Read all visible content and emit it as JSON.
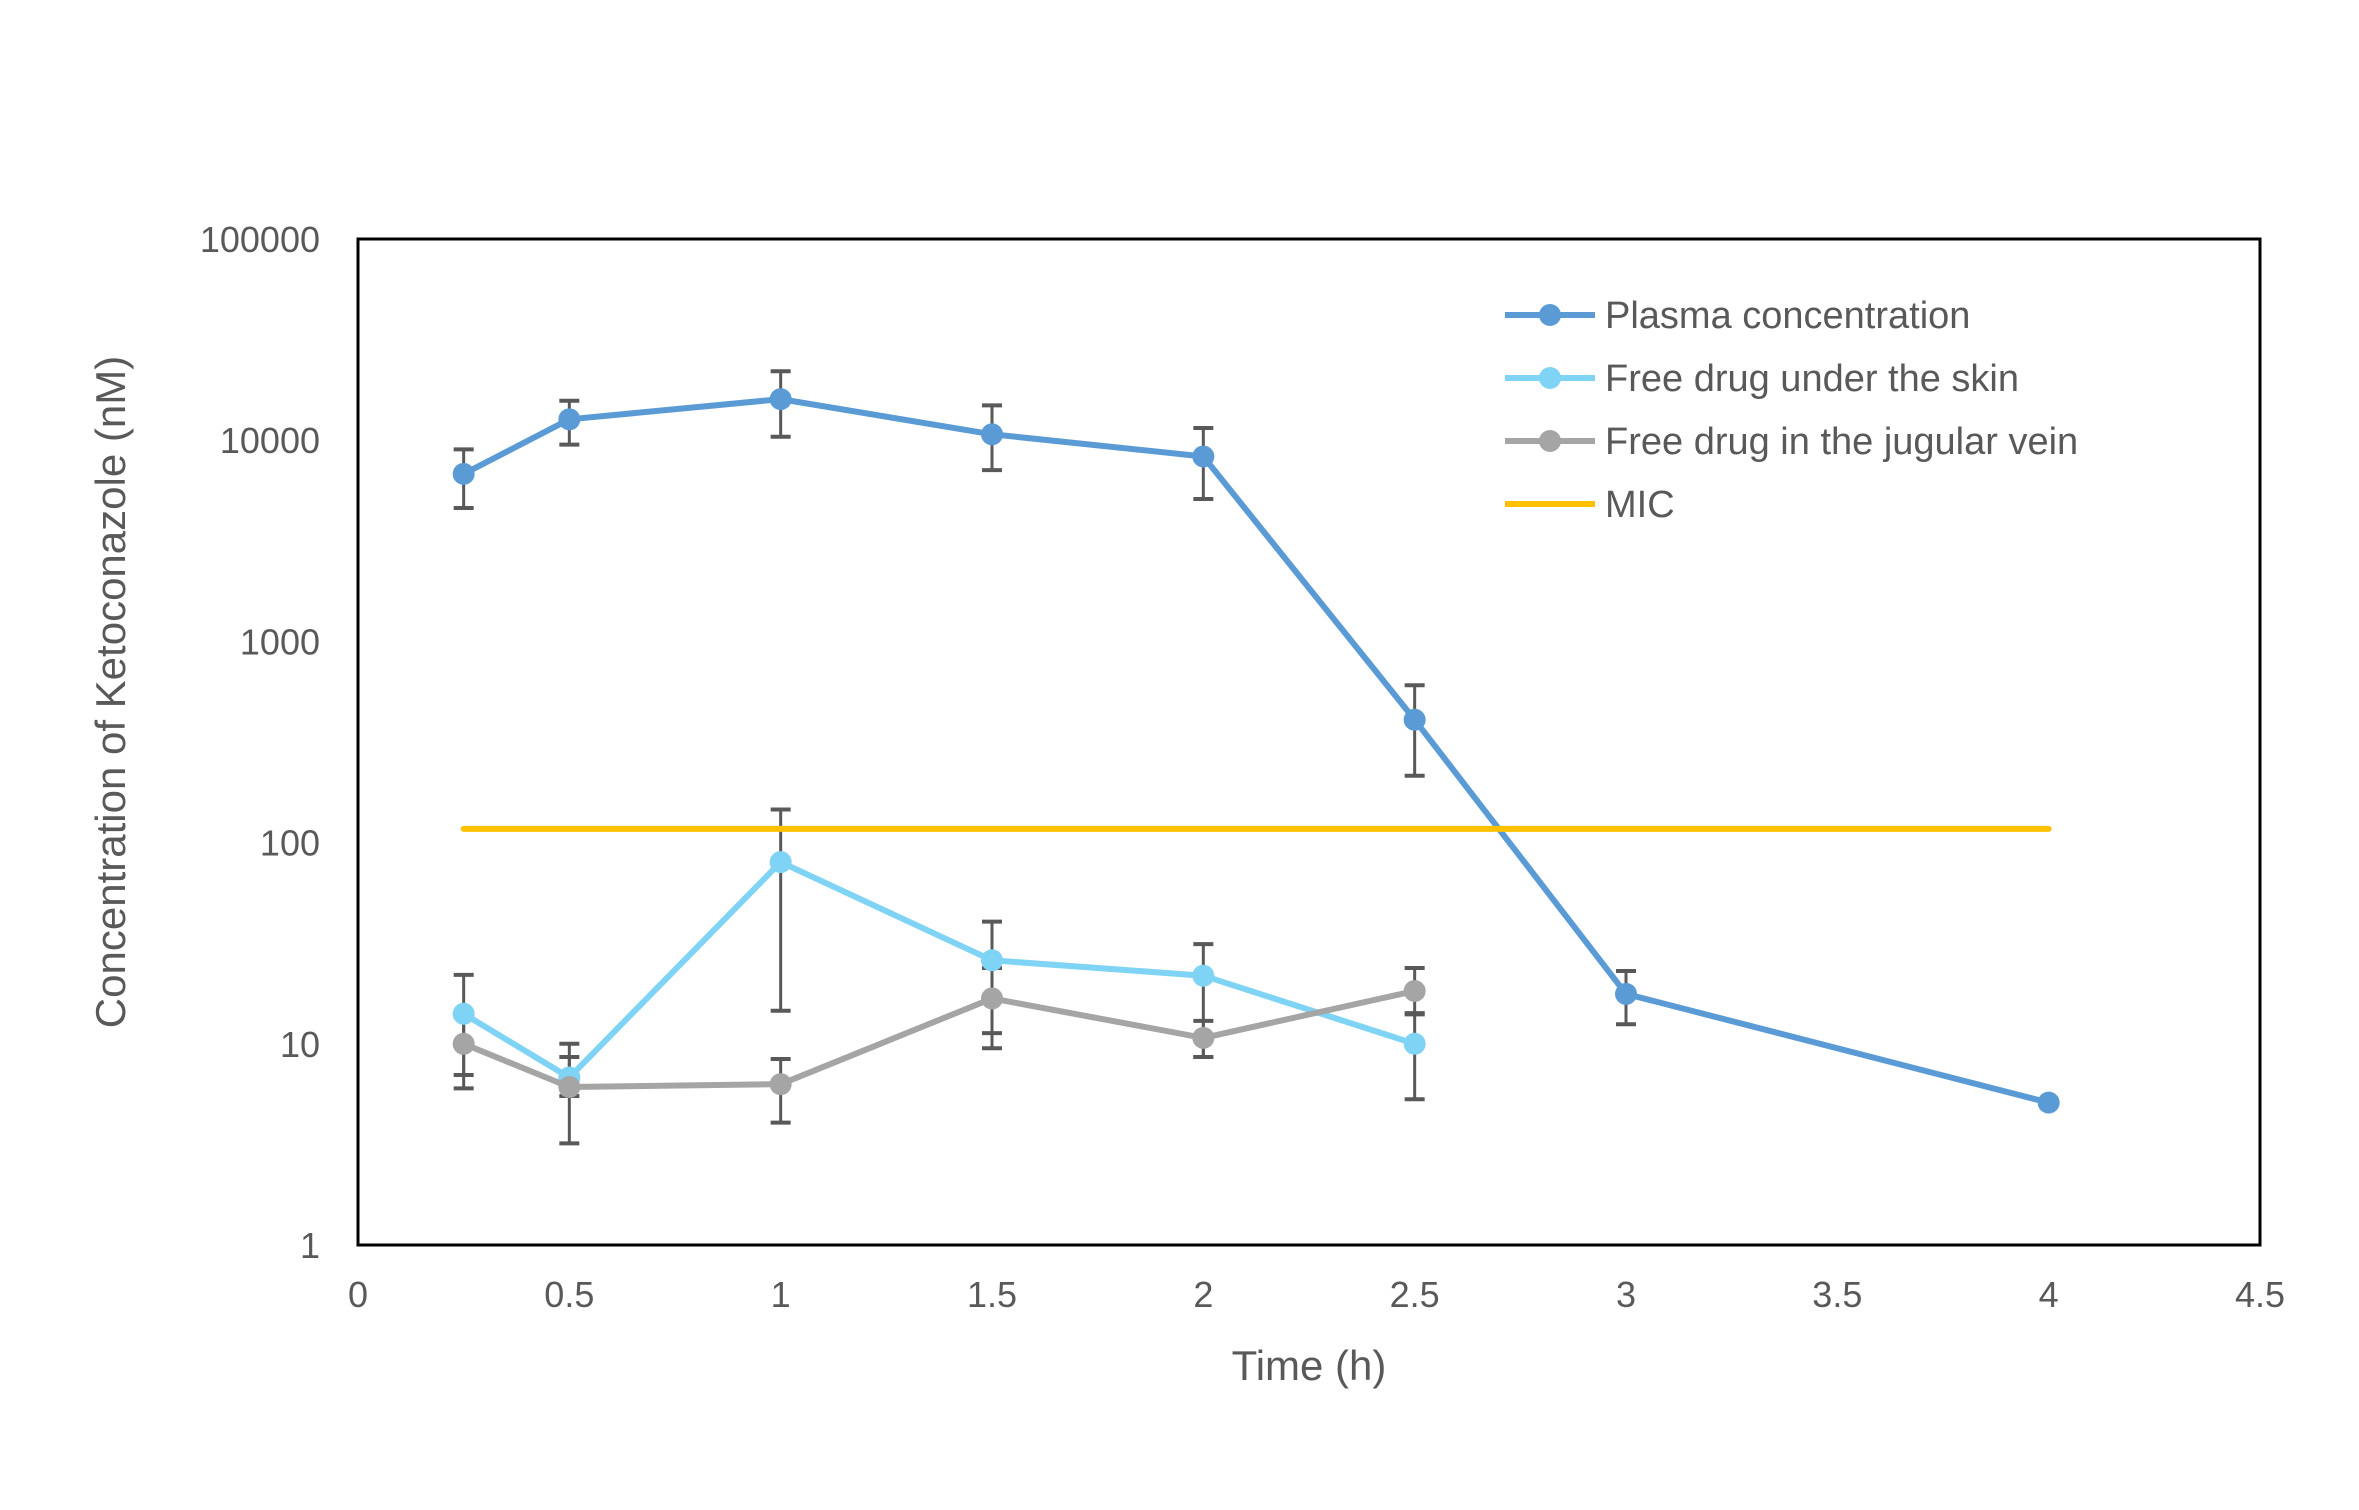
{
  "chart_data": {
    "type": "line",
    "xlabel": "Time (h)",
    "ylabel": "Concentration of Ketoconazole (nM)",
    "xlim": [
      0,
      4.5
    ],
    "ylim": [
      1,
      100000
    ],
    "yscale": "log",
    "xticks": [
      "0",
      "0.5",
      "1",
      "1.5",
      "2",
      "2.5",
      "3",
      "3.5",
      "4",
      "4.5"
    ],
    "yticks": [
      "1",
      "10",
      "100",
      "1000",
      "10000",
      "100000"
    ],
    "grid": false,
    "legend_position": "top-right",
    "series": [
      {
        "name": "Plasma concentration",
        "color": "#5B9BD5",
        "x": [
          0.25,
          0.5,
          1,
          1.5,
          2,
          2.5,
          3,
          4
        ],
        "y": [
          6800,
          12700,
          16000,
          10700,
          8300,
          408,
          17.7,
          5.1
        ],
        "err_high": [
          9000,
          15700,
          22000,
          14900,
          11500,
          605,
          23,
          null
        ],
        "err_low": [
          4600,
          9500,
          10400,
          7100,
          5100,
          215,
          12.5,
          null
        ]
      },
      {
        "name": "Free drug under the skin",
        "color": "#7FD3F4",
        "x": [
          0.25,
          0.5,
          1,
          1.5,
          2,
          2.5
        ],
        "y": [
          14.1,
          6.8,
          80,
          26,
          21.8,
          10
        ],
        "err_high": [
          22,
          10,
          146,
          40.5,
          31.3,
          14
        ],
        "err_low": [
          7,
          5.5,
          14.6,
          11.3,
          8.6,
          5.3
        ]
      },
      {
        "name": "Free drug in the jugular vein",
        "color": "#A5A5A5",
        "x": [
          0.25,
          0.5,
          1,
          1.5,
          2,
          2.5
        ],
        "y": [
          10,
          6.1,
          6.3,
          16.8,
          10.7,
          18.3
        ],
        "err_high": [
          13.6,
          8.6,
          8.4,
          23.8,
          13,
          23.8
        ],
        "err_low": [
          6.0,
          3.2,
          4.06,
          9.5,
          8.6,
          14.2
        ]
      },
      {
        "name": "MIC",
        "color": "#FFC000",
        "x": [
          0.25,
          4
        ],
        "y": [
          117,
          117
        ],
        "marker": false
      }
    ]
  }
}
